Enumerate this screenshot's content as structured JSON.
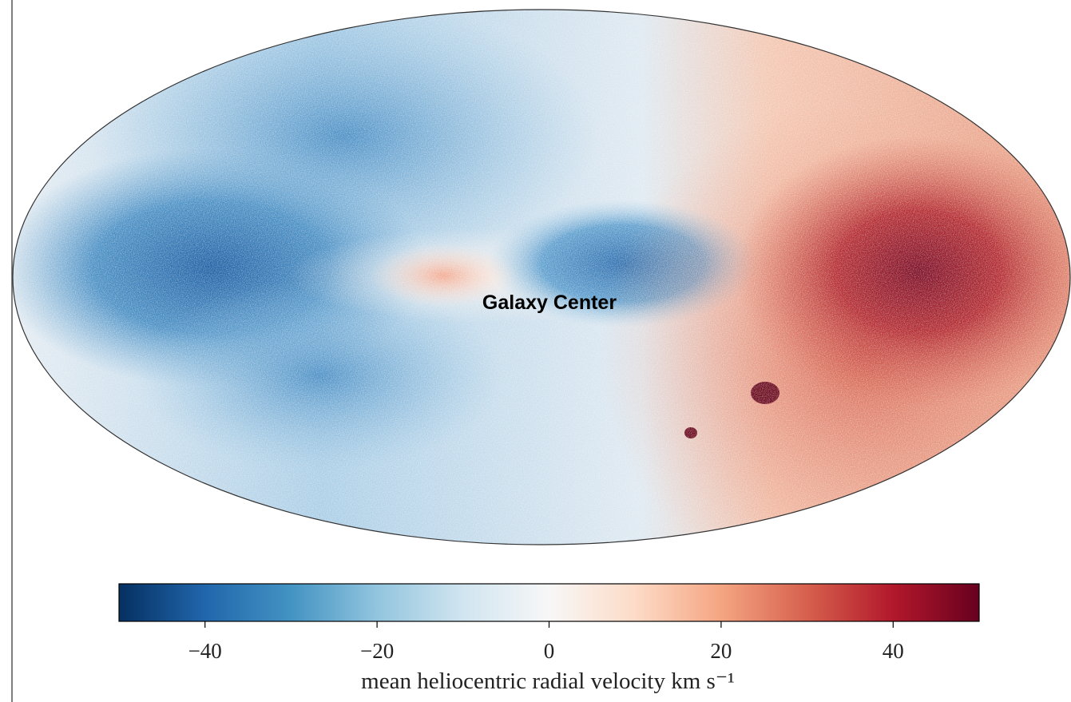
{
  "chart_data": {
    "type": "skymap",
    "projection": "mollweide",
    "annotation": "Galaxy Center",
    "colorbar_label": "mean heliocentric radial velocity km s⁻¹",
    "clim": [
      -50,
      50
    ],
    "cticks": [
      {
        "value": -40,
        "label": "−40"
      },
      {
        "value": -20,
        "label": "−20"
      },
      0,
      20,
      40
    ],
    "colormap": [
      "#053061",
      "#2166ac",
      "#4393c3",
      "#92c5de",
      "#d1e5f0",
      "#f7f7f7",
      "#fddbc7",
      "#f4a582",
      "#d6604d",
      "#b2182b",
      "#67001f"
    ]
  }
}
